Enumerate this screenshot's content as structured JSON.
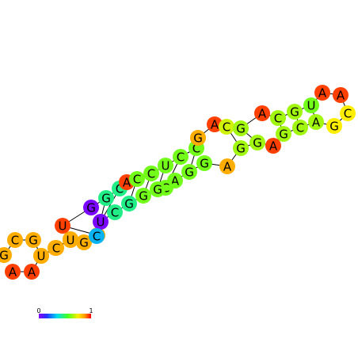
{
  "nucleotides": [
    {
      "base": "A",
      "value": 0.95
    },
    {
      "base": "A",
      "value": 0.95
    },
    {
      "base": "G",
      "value": 0.85
    },
    {
      "base": "G",
      "value": 0.85
    },
    {
      "base": "C",
      "value": 0.85
    },
    {
      "base": "G",
      "value": 0.85
    },
    {
      "base": "G",
      "value": 0.85
    },
    {
      "base": "U",
      "value": 0.95
    },
    {
      "base": "G",
      "value": 0.02
    },
    {
      "base": "G",
      "value": 0.45
    },
    {
      "base": "C",
      "value": 0.45
    },
    {
      "base": "A",
      "value": 0.95
    },
    {
      "base": "C",
      "value": 0.6
    },
    {
      "base": "C",
      "value": 0.6
    },
    {
      "base": "U",
      "value": 0.6
    },
    {
      "base": "C",
      "value": 0.6
    },
    {
      "base": "C",
      "value": 0.6
    },
    {
      "base": "G",
      "value": 0.85
    },
    {
      "base": "A",
      "value": 0.95
    },
    {
      "base": "C",
      "value": 0.7
    },
    {
      "base": "G",
      "value": 0.65
    },
    {
      "base": "A",
      "value": 0.95
    },
    {
      "base": "C",
      "value": 0.65
    },
    {
      "base": "G",
      "value": 0.65
    },
    {
      "base": "U",
      "value": 0.6
    },
    {
      "base": "A",
      "value": 0.95
    },
    {
      "base": "A",
      "value": 0.95
    },
    {
      "base": "C",
      "value": 0.75
    },
    {
      "base": "G",
      "value": 0.75
    },
    {
      "base": "A",
      "value": 0.65
    },
    {
      "base": "C",
      "value": 0.65
    },
    {
      "base": "G",
      "value": 0.65
    },
    {
      "base": "A",
      "value": 0.95
    },
    {
      "base": "G",
      "value": 0.65
    },
    {
      "base": "G",
      "value": 0.65
    },
    {
      "base": "A",
      "value": 0.85
    },
    {
      "base": "G",
      "value": 0.6
    },
    {
      "base": "G",
      "value": 0.6
    },
    {
      "base": "A",
      "value": 0.6
    },
    {
      "base": "C",
      "value": 0.6
    },
    {
      "base": "G",
      "value": 0.6
    },
    {
      "base": "G",
      "value": 0.6
    },
    {
      "base": "G",
      "value": 0.45
    },
    {
      "base": "C",
      "value": 0.45
    },
    {
      "base": "U",
      "value": 0.02
    },
    {
      "base": "C",
      "value": 0.3
    },
    {
      "base": "U",
      "value": 0.85
    },
    {
      "base": "C",
      "value": 0.85
    },
    {
      "base": "U",
      "value": 0.85
    },
    {
      "base": "G",
      "value": 0.85
    },
    {
      "base": "C",
      "value": 0.85
    },
    {
      "base": "G",
      "value": 0.85
    }
  ],
  "colorbar": {
    "min_label": "0",
    "max_label": "1"
  }
}
